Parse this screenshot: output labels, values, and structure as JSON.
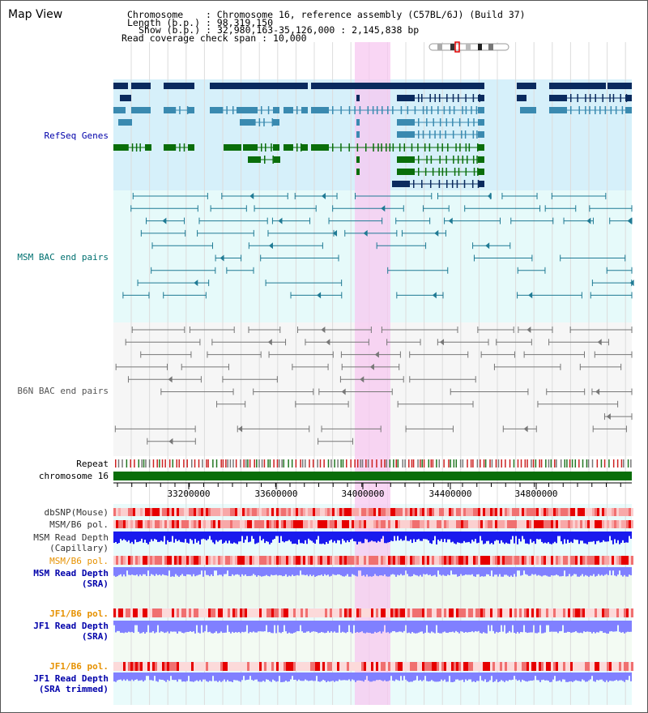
{
  "view_title": "Map View",
  "info": {
    "chromosome_label": "Chromosome",
    "chromosome_value": "Chromosome 16, reference assembly (C57BL/6J) (Build 37)",
    "length_label": "Length (b.p.)",
    "length_value": "98,319,150",
    "show_label": "Show (b.p.)",
    "show_value": "32,980,163-35,126,000 : 2,145,838 bp",
    "span_label": "Read coverage check span",
    "span_value": "10,000"
  },
  "tracks": {
    "refseq": "RefSeq Genes",
    "msm_bac": "MSM BAC end pairs",
    "b6n_bac": "B6N BAC end pairs",
    "repeat": "Repeat",
    "chromosome": "chromosome 16",
    "dbsnp": "dbSNP(Mouse)",
    "msm_b6_pol_1": "MSM/B6 pol.",
    "msm_depth_cap_1": "MSM Read Depth",
    "msm_depth_cap_2": "(Capillary)",
    "msm_b6_pol_2": "MSM/B6 pol.",
    "msm_depth_sra_1": "MSM Read Depth",
    "msm_depth_sra_2": "(SRA)",
    "jf1_b6_pol_1": "JF1/B6 pol.",
    "jf1_depth_sra_1": "JF1 Read Depth",
    "jf1_depth_sra_2": "(SRA)",
    "jf1_b6_pol_2": "JF1/B6 pol.",
    "jf1_depth_trim_1": "JF1 Read Depth",
    "jf1_depth_trim_2": "(SRA trimmed)"
  },
  "axis_ticks": [
    "33200000",
    "33600000",
    "34000000",
    "34400000",
    "34800000"
  ],
  "colors": {
    "refseq_bg": "#d6f0fa",
    "msm_bg": "#e6fafa",
    "b6n_bg": "#f6f6f6",
    "highlight": "#f7c8f0",
    "navy": "#0a2a5e",
    "teal": "#3a8ab0",
    "green": "#0a6e0a",
    "orange_label": "#e69100",
    "blue_label": "#0000aa",
    "depth_blue": "#1a1aee",
    "depth_light": "#8080ff",
    "pol_red": "#e03030"
  }
}
